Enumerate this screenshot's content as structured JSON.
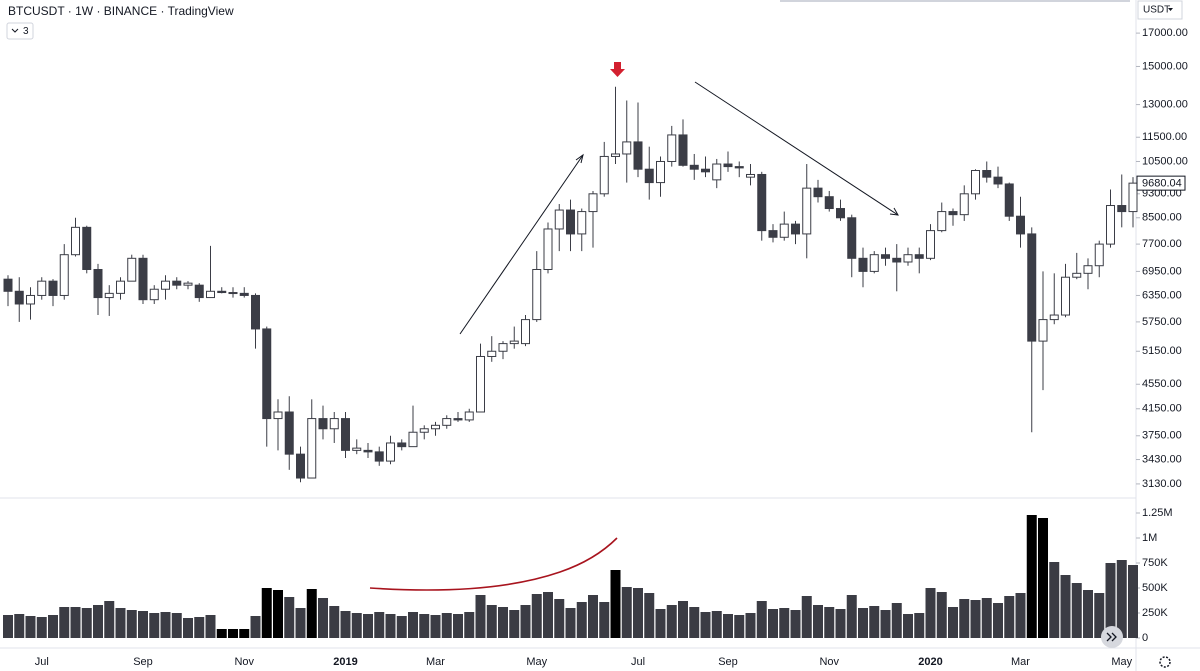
{
  "header": {
    "symbol": "BTCUSDT · 1W · BINANCE · TradingView",
    "indicators": "3",
    "currency": "USDT"
  },
  "chart_data": [
    {
      "type": "candlestick",
      "categories": [
        null,
        null,
        null,
        "Jul",
        null,
        null,
        null,
        null,
        null,
        null,
        null,
        null,
        "Sep",
        null,
        null,
        null,
        null,
        null,
        null,
        null,
        null,
        "Nov",
        null,
        null,
        null,
        null,
        null,
        null,
        null,
        null,
        "2019",
        null,
        null,
        null,
        null,
        null,
        null,
        null,
        "Mar",
        null,
        null,
        null,
        null,
        null,
        null,
        null,
        null,
        "May",
        null,
        null,
        null,
        null,
        null,
        null,
        null,
        null,
        "Jul",
        null,
        null,
        null,
        null,
        null,
        null,
        null,
        "Sep",
        null,
        null,
        null,
        null,
        null,
        null,
        null,
        null,
        "Nov",
        null,
        null,
        null,
        null,
        null,
        null,
        null,
        null,
        "2020",
        null,
        null,
        null,
        null,
        null,
        null,
        null,
        "Mar",
        null,
        null,
        null,
        null,
        null,
        null,
        null,
        null,
        "May",
        null
      ],
      "open": [
        6750,
        6450,
        6150,
        6350,
        6700,
        6350,
        7400,
        8200,
        7000,
        6300,
        6400,
        6700,
        7300,
        6250,
        6500,
        6700,
        6600,
        6600,
        6300,
        6450,
        6420,
        6400,
        6350,
        5600,
        4000,
        4100,
        3500,
        3200,
        4000,
        3850,
        4000,
        3550,
        3550,
        3530,
        3410,
        3650,
        3600,
        3800,
        3850,
        3900,
        4000,
        3980,
        4100,
        5050,
        5150,
        5300,
        5300,
        5800,
        7000,
        8150,
        8750,
        8000,
        8700,
        9300,
        10700,
        10800,
        11300,
        10200,
        9700,
        10500,
        11600,
        10350,
        10200,
        9800,
        10400,
        10300,
        9900,
        10000,
        8100,
        7900,
        8300,
        8000,
        9500,
        9200,
        8800,
        8500,
        7300,
        6950,
        7400,
        7300,
        7200,
        7400,
        7300,
        8100,
        8700,
        8600,
        9300,
        10150,
        9900,
        9650,
        8550,
        8000,
        5350,
        5800,
        5900,
        6800,
        6900,
        7100,
        7700,
        8900,
        8700
      ],
      "high": [
        6850,
        6800,
        6550,
        6800,
        6750,
        7700,
        8500,
        8250,
        7150,
        6600,
        6800,
        7400,
        7400,
        6600,
        6850,
        6800,
        6700,
        6650,
        7650,
        6550,
        6550,
        6550,
        6400,
        5650,
        4300,
        4350,
        3600,
        4300,
        4200,
        4100,
        4100,
        3700,
        3650,
        3600,
        3750,
        3700,
        4200,
        3900,
        3950,
        4050,
        4100,
        4150,
        5300,
        5450,
        5350,
        5650,
        5900,
        7500,
        8350,
        8950,
        9100,
        8800,
        9400,
        11300,
        13900,
        13200,
        13100,
        11100,
        10700,
        12000,
        12300,
        10800,
        10700,
        10600,
        10900,
        10500,
        10400,
        10100,
        8300,
        8700,
        8400,
        10400,
        9800,
        9400,
        9100,
        8600,
        7600,
        7500,
        7600,
        7700,
        7600,
        7600,
        8300,
        9000,
        8800,
        9600,
        10200,
        10500,
        10300,
        9700,
        9200,
        8200,
        6950,
        6900,
        7150,
        7450,
        7300,
        7800,
        9450,
        10000,
        9900
      ],
      "low": [
        6100,
        5750,
        5800,
        6250,
        6100,
        6250,
        7350,
        6900,
        5900,
        5880,
        6250,
        6700,
        6150,
        6150,
        6250,
        6500,
        6500,
        6200,
        6300,
        6400,
        6300,
        6300,
        5200,
        3600,
        3550,
        3300,
        3150,
        3200,
        3700,
        3650,
        3450,
        3500,
        3450,
        3350,
        3370,
        3550,
        3600,
        3700,
        3750,
        3850,
        3950,
        3950,
        4100,
        4950,
        5000,
        5200,
        5250,
        5750,
        6900,
        7500,
        7500,
        7500,
        7600,
        9200,
        10400,
        9700,
        9900,
        9100,
        9200,
        10300,
        10300,
        9800,
        9900,
        9500,
        10100,
        9900,
        9600,
        7800,
        7750,
        7800,
        7700,
        7300,
        9000,
        8700,
        8400,
        6800,
        6550,
        6900,
        7100,
        6450,
        7100,
        6900,
        7250,
        8050,
        8250,
        8400,
        9100,
        9700,
        9500,
        8400,
        7600,
        3800,
        4450,
        5700,
        5850,
        6750,
        6500,
        6800,
        7600,
        8200,
        8200
      ],
      "close": [
        6450,
        6150,
        6350,
        6700,
        6350,
        7400,
        8200,
        7000,
        6300,
        6400,
        6700,
        7300,
        6250,
        6500,
        6700,
        6600,
        6650,
        6300,
        6450,
        6420,
        6400,
        6350,
        5600,
        4000,
        4100,
        3500,
        3200,
        4000,
        3850,
        4000,
        3550,
        3580,
        3530,
        3410,
        3650,
        3600,
        3800,
        3850,
        3900,
        4000,
        3980,
        4100,
        5050,
        5150,
        5300,
        5350,
        5800,
        7000,
        8150,
        8750,
        8000,
        8700,
        9300,
        10700,
        10800,
        11300,
        10200,
        9700,
        10500,
        11600,
        10350,
        10200,
        10100,
        10400,
        10300,
        10250,
        10000,
        8100,
        7900,
        8300,
        8000,
        9500,
        9200,
        8800,
        8500,
        7300,
        6950,
        7400,
        7300,
        7200,
        7400,
        7300,
        8100,
        8700,
        8600,
        9300,
        10150,
        9900,
        9650,
        8550,
        8000,
        5350,
        5800,
        5900,
        6800,
        6900,
        7100,
        7700,
        8900,
        8700,
        9680
      ],
      "up_color": "#ffffff",
      "down_color": "#3b3d46",
      "outline_color": "#3b3d46",
      "log_scale": true,
      "ylim": [
        2980,
        19250
      ],
      "yticks": [
        {
          "value": 17000,
          "label": "17000.00"
        },
        {
          "value": 15000,
          "label": "15000.00"
        },
        {
          "value": 13000,
          "label": "13000.00"
        },
        {
          "value": 11500,
          "label": "11500.00"
        },
        {
          "value": 10500,
          "label": "10500.00"
        },
        {
          "value": 9300,
          "label": "9300.00"
        },
        {
          "value": 8500,
          "label": "8500.00"
        },
        {
          "value": 7700,
          "label": "7700.00"
        },
        {
          "value": 6950,
          "label": "6950.00"
        },
        {
          "value": 6350,
          "label": "6350.00"
        },
        {
          "value": 5750,
          "label": "5750.00"
        },
        {
          "value": 5150,
          "label": "5150.00"
        },
        {
          "value": 4550,
          "label": "4550.00"
        },
        {
          "value": 4150,
          "label": "4150.00"
        },
        {
          "value": 3750,
          "label": "3750.00"
        },
        {
          "value": 3430,
          "label": "3430.00"
        },
        {
          "value": 3130,
          "label": "3130.00"
        }
      ],
      "last_price": 9680.04,
      "grid": false
    },
    {
      "type": "bar",
      "values": [
        230000,
        240000,
        220000,
        210000,
        230000,
        310000,
        310000,
        300000,
        330000,
        370000,
        300000,
        280000,
        270000,
        250000,
        260000,
        250000,
        200000,
        210000,
        230000,
        90000,
        90000,
        90000,
        220000,
        500000,
        480000,
        410000,
        300000,
        490000,
        400000,
        320000,
        270000,
        250000,
        240000,
        260000,
        240000,
        220000,
        260000,
        240000,
        230000,
        250000,
        240000,
        260000,
        430000,
        330000,
        310000,
        280000,
        330000,
        440000,
        460000,
        390000,
        300000,
        360000,
        430000,
        360000,
        680000,
        510000,
        500000,
        450000,
        290000,
        330000,
        370000,
        310000,
        260000,
        270000,
        240000,
        230000,
        250000,
        370000,
        290000,
        300000,
        280000,
        420000,
        330000,
        310000,
        290000,
        430000,
        300000,
        320000,
        280000,
        350000,
        240000,
        250000,
        500000,
        460000,
        310000,
        390000,
        380000,
        400000,
        350000,
        420000,
        450000,
        1230000,
        1200000,
        760000,
        630000,
        550000,
        480000,
        450000,
        750000,
        780000,
        730000
      ],
      "colors": [
        "#3b3c44",
        "#3b3c44",
        "#3b3c44",
        "#3b3c44",
        "#3b3c44",
        "#3b3c44",
        "#3b3c44",
        "#3b3c44",
        "#3b3c44",
        "#3b3c44",
        "#3b3c44",
        "#3b3c44",
        "#3b3c44",
        "#3b3c44",
        "#3b3c44",
        "#3b3c44",
        "#3b3c44",
        "#3b3c44",
        "#3b3c44",
        "#000000",
        "#000000",
        "#000000",
        "#3b3c44",
        "#000000",
        "#000000",
        "#3b3c44",
        "#3b3c44",
        "#000000",
        "#3b3c44",
        "#3b3c44",
        "#3b3c44",
        "#3b3c44",
        "#3b3c44",
        "#3b3c44",
        "#3b3c44",
        "#3b3c44",
        "#3b3c44",
        "#3b3c44",
        "#3b3c44",
        "#3b3c44",
        "#3b3c44",
        "#3b3c44",
        "#3b3c44",
        "#3b3c44",
        "#3b3c44",
        "#3b3c44",
        "#3b3c44",
        "#3b3c44",
        "#3b3c44",
        "#3b3c44",
        "#3b3c44",
        "#3b3c44",
        "#3b3c44",
        "#3b3c44",
        "#000000",
        "#3b3c44",
        "#3b3c44",
        "#3b3c44",
        "#3b3c44",
        "#3b3c44",
        "#3b3c44",
        "#3b3c44",
        "#3b3c44",
        "#3b3c44",
        "#3b3c44",
        "#3b3c44",
        "#3b3c44",
        "#3b3c44",
        "#3b3c44",
        "#3b3c44",
        "#3b3c44",
        "#3b3c44",
        "#3b3c44",
        "#3b3c44",
        "#3b3c44",
        "#3b3c44",
        "#3b3c44",
        "#3b3c44",
        "#3b3c44",
        "#3b3c44",
        "#3b3c44",
        "#3b3c44",
        "#3b3c44",
        "#3b3c44",
        "#3b3c44",
        "#3b3c44",
        "#3b3c44",
        "#3b3c44",
        "#3b3c44",
        "#3b3c44",
        "#3b3c44",
        "#000000",
        "#000000",
        "#3b3c44",
        "#3b3c44",
        "#3b3c44",
        "#3b3c44",
        "#3b3c44",
        "#3b3c44",
        "#3b3c44",
        "#3b3c44"
      ],
      "ylim": [
        0,
        1380000
      ],
      "yticks": [
        {
          "value": 1250000,
          "label": "1.25M"
        },
        {
          "value": 1000000,
          "label": "1M"
        },
        {
          "value": 750000,
          "label": "750K"
        },
        {
          "value": 500000,
          "label": "500K"
        },
        {
          "value": 250000,
          "label": "250K"
        },
        0
      ]
    }
  ]
}
